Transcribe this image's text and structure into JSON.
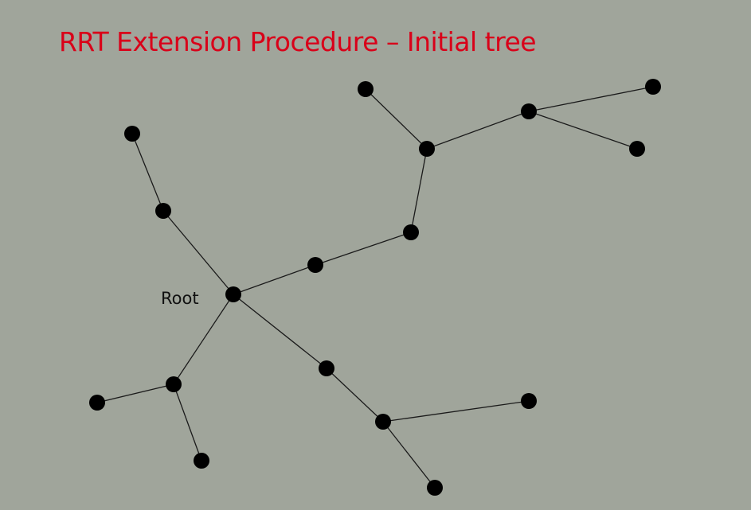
{
  "slide": {
    "title": "RRT Extension Procedure – Initial tree"
  },
  "tree": {
    "root_label": "Root"
  },
  "colors": {
    "background": "#a0a59b",
    "title": "#d90019",
    "node": "#000000",
    "edge": "#1a1a1a",
    "label": "#111111"
  }
}
